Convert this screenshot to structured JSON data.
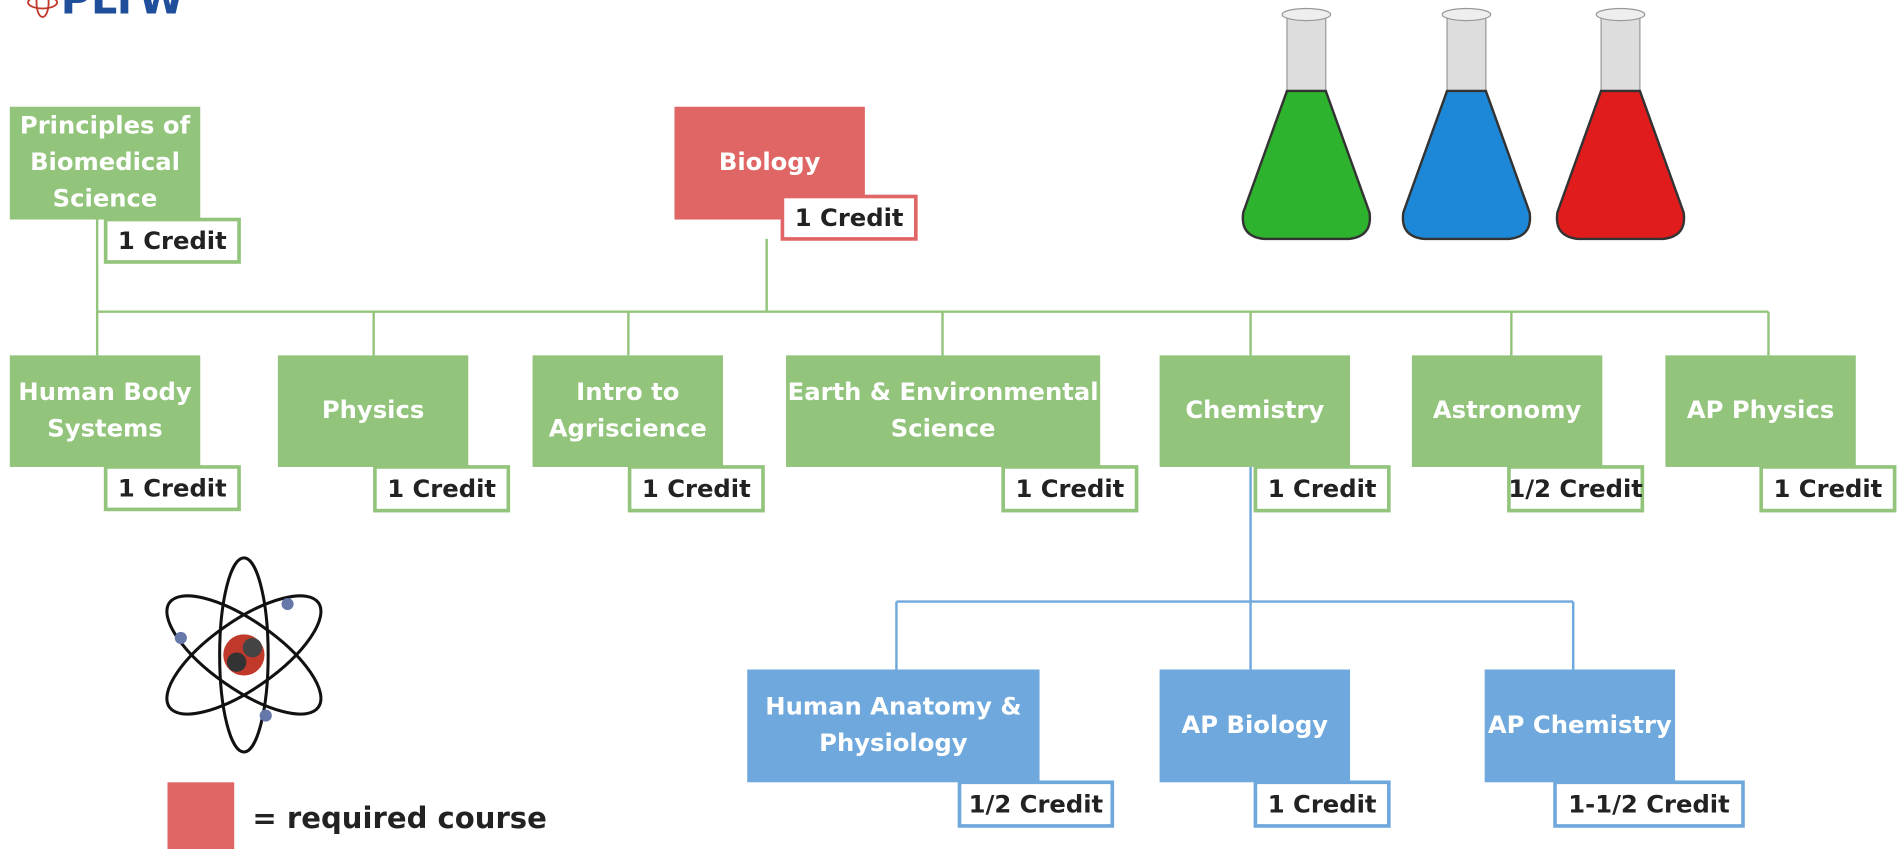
{
  "logo": "PLTW",
  "legend": "= required course",
  "nodes": [
    {
      "label": [
        "Principles of",
        "Biomedical",
        "Science"
      ],
      "credit": "1 Credit",
      "color": "#92c47c"
    },
    {
      "label": [
        "Biology"
      ],
      "credit": "1 Credit",
      "color": "#e06666"
    },
    {
      "label": [
        "Human Body",
        "Systems"
      ],
      "credit": "1 Credit",
      "color": "#92c47c"
    },
    {
      "label": [
        "Physics"
      ],
      "credit": "1 Credit",
      "color": "#92c47c"
    },
    {
      "label": [
        "Intro to",
        "Agriscience"
      ],
      "credit": "1 Credit",
      "color": "#92c47c"
    },
    {
      "label": [
        "Earth & Environmental",
        "Science"
      ],
      "credit": "1 Credit",
      "color": "#92c47c"
    },
    {
      "label": [
        "Chemistry"
      ],
      "credit": "1 Credit",
      "color": "#92c47c"
    },
    {
      "label": [
        "Astronomy"
      ],
      "credit": "1/2 Credit",
      "color": "#92c47c"
    },
    {
      "label": [
        "AP Physics"
      ],
      "credit": "1 Credit",
      "color": "#92c47c"
    },
    {
      "label": [
        "Human Anatomy &",
        "Physiology"
      ],
      "credit": "1/2 Credit",
      "color": "#6fa8dc"
    },
    {
      "label": [
        "AP Biology"
      ],
      "credit": "1 Credit",
      "color": "#6fa8dc"
    },
    {
      "label": [
        "AP Chemistry"
      ],
      "credit": "1-1/2 Credit",
      "color": "#6fa8dc"
    }
  ]
}
